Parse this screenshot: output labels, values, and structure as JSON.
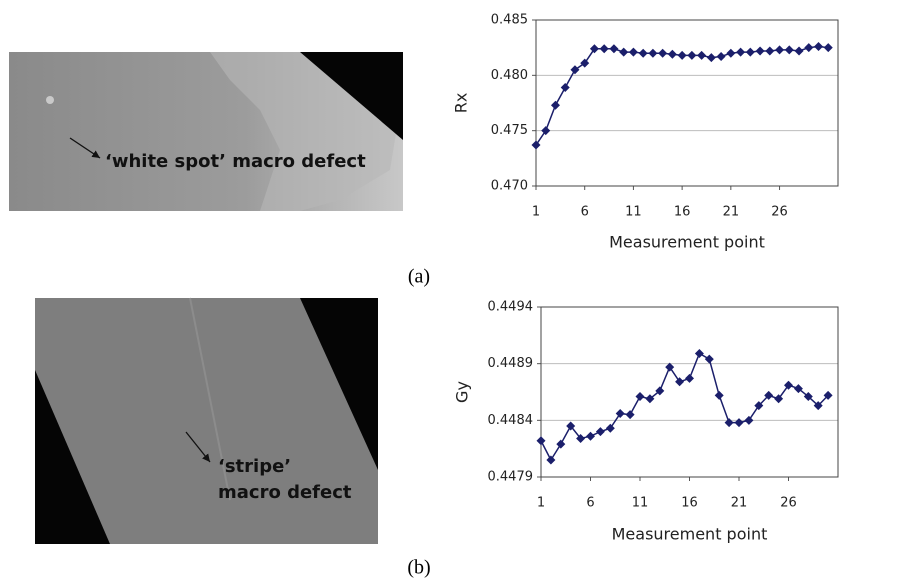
{
  "figure": {
    "panels": [
      {
        "caption": "(a)",
        "image_annotation": [
          "‘white spot’ macro defect"
        ]
      },
      {
        "caption": "(b)",
        "image_annotation": [
          "‘stripe’",
          "macro defect"
        ]
      }
    ]
  },
  "chart_data": [
    {
      "type": "line",
      "y_label": "Rx",
      "x_label": "Measurement point",
      "color": "#1b1f6b",
      "grid": true,
      "x": [
        1,
        2,
        3,
        4,
        5,
        6,
        7,
        8,
        9,
        10,
        11,
        12,
        13,
        14,
        15,
        16,
        17,
        18,
        19,
        20,
        21,
        22,
        23,
        24,
        25,
        26,
        27,
        28,
        29,
        30,
        31
      ],
      "values": [
        0.4737,
        0.475,
        0.4773,
        0.4789,
        0.4805,
        0.4811,
        0.4824,
        0.4824,
        0.4824,
        0.4821,
        0.4821,
        0.482,
        0.482,
        0.482,
        0.4819,
        0.4818,
        0.4818,
        0.4818,
        0.4816,
        0.4817,
        0.482,
        0.4821,
        0.4821,
        0.4822,
        0.4822,
        0.4823,
        0.4823,
        0.4822,
        0.4825,
        0.4826,
        0.4825
      ],
      "xlim": [
        1,
        32
      ],
      "xticks": [
        1,
        6,
        11,
        16,
        21,
        26
      ],
      "ylim": [
        0.47,
        0.485
      ],
      "yticks": [
        {
          "value": 0.47,
          "label": "0.470"
        },
        0.475,
        {
          "value": 0.48,
          "label": "0.480"
        },
        0.485
      ]
    },
    {
      "type": "line",
      "y_label": "Gy",
      "x_label": "Measurement point",
      "color": "#1b1f6b",
      "grid": true,
      "x": [
        1,
        2,
        3,
        4,
        5,
        6,
        7,
        8,
        9,
        10,
        11,
        12,
        13,
        14,
        15,
        16,
        17,
        18,
        19,
        20,
        21,
        22,
        23,
        24,
        25,
        26,
        27,
        28,
        29,
        30
      ],
      "values": [
        0.44822,
        0.44805,
        0.44819,
        0.44835,
        0.44824,
        0.44826,
        0.4483,
        0.44833,
        0.44846,
        0.44845,
        0.44861,
        0.44859,
        0.44866,
        0.44887,
        0.44874,
        0.44877,
        0.44899,
        0.44894,
        0.44862,
        0.44838,
        0.44838,
        0.4484,
        0.44853,
        0.44862,
        0.44859,
        0.44871,
        0.44868,
        0.44861,
        0.44853,
        0.44862
      ],
      "xlim": [
        1,
        31
      ],
      "xticks": [
        1,
        6,
        11,
        16,
        21,
        26
      ],
      "ylim": [
        0.4479,
        0.4494
      ],
      "yticks": [
        0.4479,
        0.4484,
        0.4489,
        0.4494
      ]
    }
  ]
}
